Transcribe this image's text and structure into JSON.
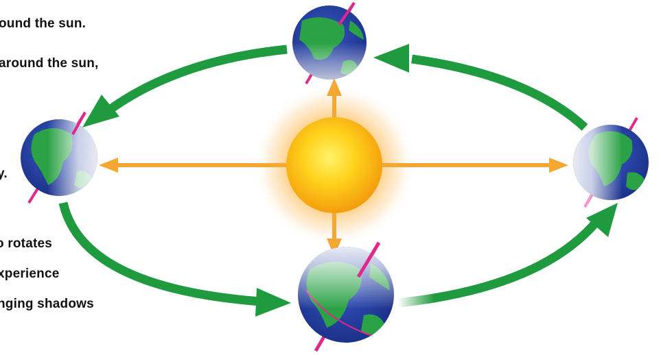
{
  "caption": {
    "lines": [
      "ound the sun.",
      "around the sun,",
      "y.",
      "o rotates",
      "xperience",
      "nging shadows"
    ]
  },
  "colors": {
    "orbit_arrow": "#1f9a3e",
    "sun_ray": "#f4a733",
    "sun_core": "#f8a80f",
    "axis": "#e0288a",
    "ocean": "#203d9c",
    "land": "#2aa245"
  },
  "icons": {
    "sun": "sun-icon",
    "earth": "earth-globe-icon"
  }
}
